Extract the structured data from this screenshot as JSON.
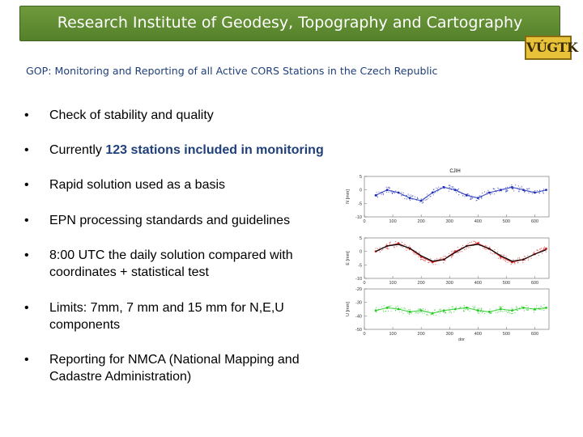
{
  "header": {
    "title": "Research Institute of Geodesy, Topography and Cartography",
    "logo_text": "VÚGTK"
  },
  "subtitle": "GOP: Monitoring and Reporting of all Active CORS Stations in the Czech Republic",
  "bullets": [
    {
      "bullet": "•",
      "text": "Check of stability and quality"
    },
    {
      "bullet": "•",
      "text": "Currently ",
      "highlight": "123 stations included in monitoring"
    },
    {
      "bullet": "•",
      "text": "Rapid solution used as a basis"
    },
    {
      "bullet": "•",
      "text": "EPN processing standards and guidelines"
    },
    {
      "bullet": "•",
      "text": "8:00 UTC the daily solution compared with coordinates + statistical test"
    },
    {
      "bullet": "•",
      "text": "Limits: 7mm, 7 mm and 15 mm for N,E,U components"
    },
    {
      "bullet": "•",
      "text": "Reporting for NMCA (National Mapping and Cadastre Administration)"
    }
  ],
  "colors": {
    "banner": "#5f8b32",
    "highlight": "#1f3f7a",
    "n_series": "#1f2fb8",
    "e_series": "#d81e1e",
    "u_series": "#22cc22",
    "trend": "#000000"
  },
  "chart_data": {
    "type": "scatter",
    "title": "CJIH",
    "panels": [
      {
        "name": "N",
        "ylabel": "N [mm]",
        "ylim": [
          -10,
          5
        ],
        "yticks": [
          "5",
          "0",
          "-5",
          "-10"
        ],
        "xticks": [
          "0",
          "100",
          "200",
          "300",
          "400",
          "500",
          "600"
        ],
        "xlim": [
          0,
          650
        ],
        "color": "#1f2fb8",
        "x": [
          40,
          80,
          120,
          160,
          200,
          240,
          280,
          320,
          360,
          400,
          440,
          480,
          520,
          560,
          600,
          640
        ],
        "y": [
          -2,
          0,
          -1,
          -3,
          -4,
          -1,
          1,
          0,
          -2,
          -3,
          -1,
          0,
          1,
          0,
          -1,
          0
        ]
      },
      {
        "name": "E",
        "ylabel": "E [mm]",
        "ylim": [
          -10,
          5
        ],
        "yticks": [
          "5",
          "0",
          "-5",
          "-10"
        ],
        "xticks": [
          "0",
          "100",
          "200",
          "300",
          "400",
          "500",
          "600"
        ],
        "xlim": [
          0,
          650
        ],
        "color": "#d81e1e",
        "x": [
          40,
          80,
          120,
          160,
          200,
          240,
          280,
          320,
          360,
          400,
          440,
          480,
          520,
          560,
          600,
          640
        ],
        "y": [
          0,
          2,
          3,
          1,
          -2,
          -4,
          -3,
          0,
          2,
          3,
          1,
          -2,
          -4,
          -3,
          -1,
          1
        ],
        "trend_y": [
          0,
          2,
          2.6,
          1.2,
          -1.6,
          -3.6,
          -3,
          -0.4,
          2,
          2.6,
          1,
          -1.6,
          -3.6,
          -3,
          -1,
          0.6
        ]
      },
      {
        "name": "U",
        "ylabel": "U [mm]",
        "ylim": [
          -50,
          -20
        ],
        "yticks": [
          "-20",
          "-30",
          "-40",
          "-50"
        ],
        "xticks": [
          "0",
          "100",
          "200",
          "300",
          "400",
          "500",
          "600"
        ],
        "xlim": [
          0,
          650
        ],
        "xlabel": "dor",
        "color": "#22cc22",
        "x": [
          40,
          80,
          120,
          160,
          200,
          240,
          280,
          320,
          360,
          400,
          440,
          480,
          520,
          560,
          600,
          640
        ],
        "y": [
          -36,
          -34,
          -35,
          -37,
          -36,
          -38,
          -36,
          -35,
          -34,
          -36,
          -37,
          -35,
          -36,
          -34,
          -35,
          -34
        ]
      }
    ]
  }
}
